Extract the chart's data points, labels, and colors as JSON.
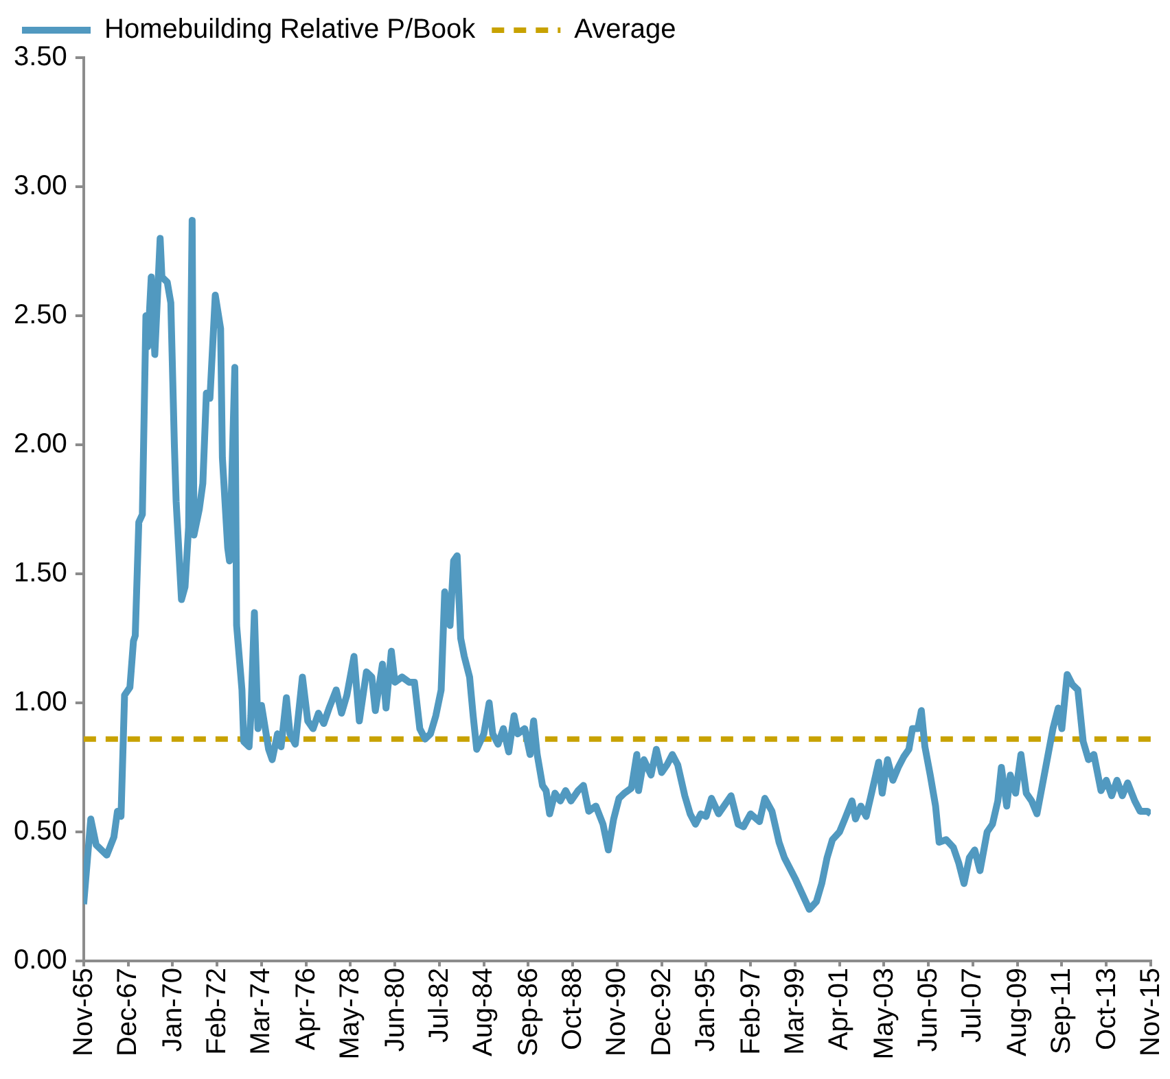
{
  "chart_data": {
    "type": "line",
    "x": [
      "1965-11",
      "1966-03",
      "1966-06",
      "1966-12",
      "1967-04",
      "1967-06",
      "1967-08",
      "1967-10",
      "1968-01",
      "1968-03",
      "1968-04",
      "1968-06",
      "1968-08",
      "1968-10",
      "1968-11",
      "1969-01",
      "1969-03",
      "1969-06",
      "1969-07",
      "1969-10",
      "1969-12",
      "1970-02",
      "1970-03",
      "1970-06",
      "1970-08",
      "1970-10",
      "1970-12",
      "1971-01",
      "1971-04",
      "1971-06",
      "1971-08",
      "1971-10",
      "1972-01",
      "1972-04",
      "1972-05",
      "1972-08",
      "1972-09",
      "1972-12",
      "1973-01",
      "1973-04",
      "1973-05",
      "1973-08",
      "1973-09",
      "1973-11",
      "1974-01",
      "1974-03",
      "1974-07",
      "1974-09",
      "1974-12",
      "1975-02",
      "1975-05",
      "1975-07",
      "1975-10",
      "1976-02",
      "1976-05",
      "1976-08",
      "1976-11",
      "1977-02",
      "1977-05",
      "1977-09",
      "1977-12",
      "1978-03",
      "1978-07",
      "1978-10",
      "1979-02",
      "1979-05",
      "1979-07",
      "1979-11",
      "1980-01",
      "1980-04",
      "1980-06",
      "1980-10",
      "1981-02",
      "1981-05",
      "1981-08",
      "1981-11",
      "1982-02",
      "1982-05",
      "1982-08",
      "1982-10",
      "1983-01",
      "1983-03",
      "1983-05",
      "1983-07",
      "1983-09",
      "1983-12",
      "1984-02",
      "1984-04",
      "1984-08",
      "1984-11",
      "1985-01",
      "1985-04",
      "1985-07",
      "1985-10",
      "1986-01",
      "1986-03",
      "1986-07",
      "1986-10",
      "1986-12",
      "1987-02",
      "1987-05",
      "1987-07",
      "1987-09",
      "1987-12",
      "1988-03",
      "1988-06",
      "1988-09",
      "1989-01",
      "1989-04",
      "1989-07",
      "1989-11",
      "1990-03",
      "1990-06",
      "1990-09",
      "1990-12",
      "1991-03",
      "1991-07",
      "1991-10",
      "1991-11",
      "1992-02",
      "1992-06",
      "1992-09",
      "1992-12",
      "1993-03",
      "1993-06",
      "1993-09",
      "1994-01",
      "1994-04",
      "1994-07",
      "1994-10",
      "1995-01",
      "1995-04",
      "1995-08",
      "1995-11",
      "1996-03",
      "1996-07",
      "1996-10",
      "1997-02",
      "1997-07",
      "1997-10",
      "1998-02",
      "1998-06",
      "1998-09",
      "1999-03",
      "1999-11",
      "2000-03",
      "2000-06",
      "2000-09",
      "2000-12",
      "2001-04",
      "2001-07",
      "2001-11",
      "2002-01",
      "2002-04",
      "2002-07",
      "2002-10",
      "2003-02",
      "2003-04",
      "2003-07",
      "2003-10",
      "2004-01",
      "2004-04",
      "2004-07",
      "2004-09",
      "2004-12",
      "2005-02",
      "2005-04",
      "2005-07",
      "2005-10",
      "2005-12",
      "2006-04",
      "2006-08",
      "2006-11",
      "2007-02",
      "2007-05",
      "2007-08",
      "2007-11",
      "2008-03",
      "2008-06",
      "2008-09",
      "2008-11",
      "2009-02",
      "2009-04",
      "2009-07",
      "2009-10",
      "2010-01",
      "2010-04",
      "2010-07",
      "2010-10",
      "2011-01",
      "2011-04",
      "2011-07",
      "2011-09",
      "2011-12",
      "2012-03",
      "2012-06",
      "2012-09",
      "2012-12",
      "2013-03",
      "2013-07",
      "2013-10",
      "2014-01",
      "2014-04",
      "2014-07",
      "2014-10",
      "2015-02",
      "2015-05",
      "2015-09",
      "2015-11"
    ],
    "series": [
      {
        "name": "Homebuilding Relative P/Book",
        "color": "#5199c0",
        "values": [
          0.22,
          0.55,
          0.45,
          0.41,
          0.48,
          0.58,
          0.56,
          1.03,
          1.06,
          1.24,
          1.26,
          1.7,
          1.73,
          2.5,
          2.38,
          2.65,
          2.35,
          2.8,
          2.65,
          2.63,
          2.55,
          2.0,
          1.78,
          1.4,
          1.45,
          1.68,
          2.87,
          1.65,
          1.75,
          1.85,
          2.2,
          2.18,
          2.58,
          2.45,
          1.95,
          1.6,
          1.55,
          2.3,
          1.3,
          1.05,
          0.85,
          0.83,
          0.95,
          1.35,
          0.9,
          0.99,
          0.82,
          0.78,
          0.88,
          0.83,
          1.02,
          0.88,
          0.84,
          1.1,
          0.93,
          0.9,
          0.96,
          0.92,
          0.98,
          1.05,
          0.96,
          1.03,
          1.18,
          0.93,
          1.12,
          1.1,
          0.97,
          1.15,
          0.98,
          1.2,
          1.08,
          1.1,
          1.08,
          1.08,
          0.9,
          0.86,
          0.88,
          0.95,
          1.05,
          1.43,
          1.3,
          1.55,
          1.57,
          1.25,
          1.18,
          1.1,
          0.95,
          0.82,
          0.88,
          1.0,
          0.88,
          0.84,
          0.9,
          0.81,
          0.95,
          0.88,
          0.9,
          0.8,
          0.93,
          0.8,
          0.68,
          0.66,
          0.57,
          0.65,
          0.62,
          0.66,
          0.62,
          0.66,
          0.68,
          0.58,
          0.6,
          0.53,
          0.43,
          0.55,
          0.63,
          0.65,
          0.67,
          0.8,
          0.66,
          0.78,
          0.72,
          0.82,
          0.73,
          0.76,
          0.8,
          0.76,
          0.64,
          0.57,
          0.53,
          0.57,
          0.56,
          0.63,
          0.57,
          0.6,
          0.64,
          0.53,
          0.52,
          0.57,
          0.54,
          0.63,
          0.58,
          0.46,
          0.4,
          0.32,
          0.2,
          0.23,
          0.3,
          0.4,
          0.47,
          0.5,
          0.55,
          0.62,
          0.55,
          0.6,
          0.56,
          0.65,
          0.77,
          0.65,
          0.78,
          0.7,
          0.75,
          0.79,
          0.82,
          0.9,
          0.9,
          0.97,
          0.83,
          0.72,
          0.6,
          0.46,
          0.47,
          0.44,
          0.38,
          0.3,
          0.4,
          0.43,
          0.35,
          0.5,
          0.53,
          0.62,
          0.75,
          0.6,
          0.72,
          0.65,
          0.8,
          0.65,
          0.62,
          0.57,
          0.68,
          0.79,
          0.9,
          0.98,
          0.9,
          1.11,
          1.07,
          1.05,
          0.85,
          0.78,
          0.8,
          0.66,
          0.7,
          0.64,
          0.7,
          0.64,
          0.69,
          0.62,
          0.58,
          0.58,
          0.57
        ]
      }
    ],
    "xlim": [
      "1965-11",
      "2015-11"
    ],
    "xticks": [
      {
        "value": "1965-11",
        "label": "Nov-65"
      },
      {
        "value": "1967-12",
        "label": "Dec-67"
      },
      {
        "value": "1970-01",
        "label": "Jan-70"
      },
      {
        "value": "1972-02",
        "label": "Feb-72"
      },
      {
        "value": "1974-03",
        "label": "Mar-74"
      },
      {
        "value": "1976-04",
        "label": "Apr-76"
      },
      {
        "value": "1978-05",
        "label": "May-78"
      },
      {
        "value": "1980-06",
        "label": "Jun-80"
      },
      {
        "value": "1982-07",
        "label": "Jul-82"
      },
      {
        "value": "1984-08",
        "label": "Aug-84"
      },
      {
        "value": "1986-09",
        "label": "Sep-86"
      },
      {
        "value": "1988-10",
        "label": "Oct-88"
      },
      {
        "value": "1990-11",
        "label": "Nov-90"
      },
      {
        "value": "1992-12",
        "label": "Dec-92"
      },
      {
        "value": "1995-01",
        "label": "Jan-95"
      },
      {
        "value": "1997-02",
        "label": "Feb-97"
      },
      {
        "value": "1999-03",
        "label": "Mar-99"
      },
      {
        "value": "2001-04",
        "label": "Apr-01"
      },
      {
        "value": "2003-05",
        "label": "May-03"
      },
      {
        "value": "2005-06",
        "label": "Jun-05"
      },
      {
        "value": "2007-07",
        "label": "Jul-07"
      },
      {
        "value": "2009-08",
        "label": "Aug-09"
      },
      {
        "value": "2011-09",
        "label": "Sep-11"
      },
      {
        "value": "2013-10",
        "label": "Oct-13"
      },
      {
        "value": "2015-11",
        "label": "Nov-15"
      }
    ],
    "ylim": [
      0,
      3.5
    ],
    "yticks": [
      {
        "value": 0,
        "label": "0.00"
      },
      {
        "value": 0.5,
        "label": "0.50"
      },
      {
        "value": 1,
        "label": "1.00"
      },
      {
        "value": 1.5,
        "label": "1.50"
      },
      {
        "value": 2,
        "label": "2.00"
      },
      {
        "value": 2.5,
        "label": "2.50"
      },
      {
        "value": 3,
        "label": "3.00"
      },
      {
        "value": 3.5,
        "label": "3.50"
      }
    ],
    "ref_lines": [
      {
        "axis": "y",
        "value": 0.86,
        "label": "Average",
        "color": "#c8a200",
        "line_style": "dashed"
      }
    ],
    "marker": "none",
    "line_style": "solid",
    "legend": "top left"
  }
}
